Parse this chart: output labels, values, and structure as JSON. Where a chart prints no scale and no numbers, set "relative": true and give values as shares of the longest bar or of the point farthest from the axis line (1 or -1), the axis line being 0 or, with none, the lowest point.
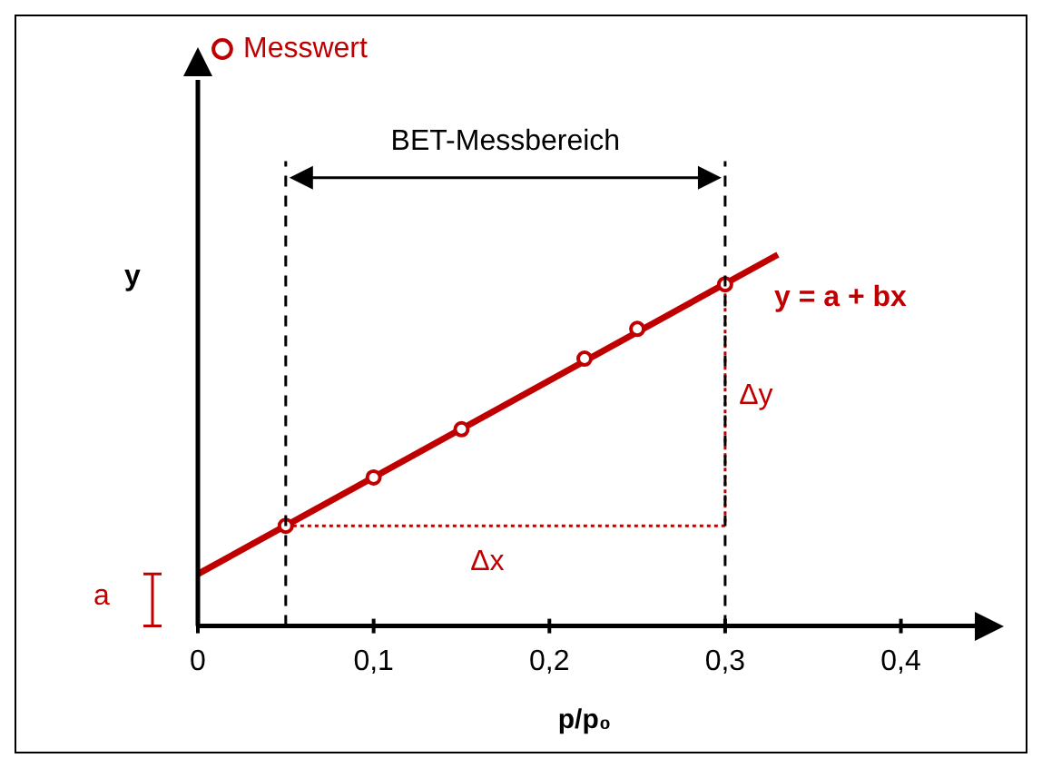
{
  "chart_data": {
    "type": "line",
    "relative": true,
    "xlabel": "p/p₀",
    "ylabel": "y",
    "xlim": [
      0,
      0.44
    ],
    "xticks": [
      0,
      {
        "value": 0.1,
        "label": "0,1"
      },
      {
        "value": 0.2,
        "label": "0,2"
      },
      {
        "value": 0.3,
        "label": "0,3"
      },
      {
        "value": 0.4,
        "label": "0,4"
      }
    ],
    "series": [
      {
        "name": "Messwert",
        "type": "scatter",
        "marker": "circle",
        "color": "#c00000",
        "x": [
          0.05,
          0.1,
          0.15,
          0.22,
          0.25,
          0.3
        ],
        "values": [
          0.27,
          0.4,
          0.53,
          0.72,
          0.8,
          0.92
        ]
      },
      {
        "name": "y = a + bx",
        "type": "line",
        "marker": "none",
        "color": "#c00000",
        "x": [
          0,
          0.33
        ],
        "values": [
          0.14,
          1
        ]
      },
      {
        "type": "line",
        "marker": "none",
        "line_style": "dotted",
        "color": "#c00000",
        "x": [
          0.05,
          0.3,
          0.3
        ],
        "values": [
          0.27,
          0.27,
          0.92
        ]
      }
    ],
    "ref_lines": [
      {
        "axis": "x",
        "value": 0.05,
        "color": "#000000",
        "line_style": "dashed"
      },
      {
        "axis": "x",
        "value": 0.3,
        "color": "#000000",
        "line_style": "dashed"
      }
    ],
    "annotations": [
      "BET-Messbereich",
      "Δx",
      "Δy",
      "a"
    ],
    "legend": "top left",
    "grid": false
  }
}
